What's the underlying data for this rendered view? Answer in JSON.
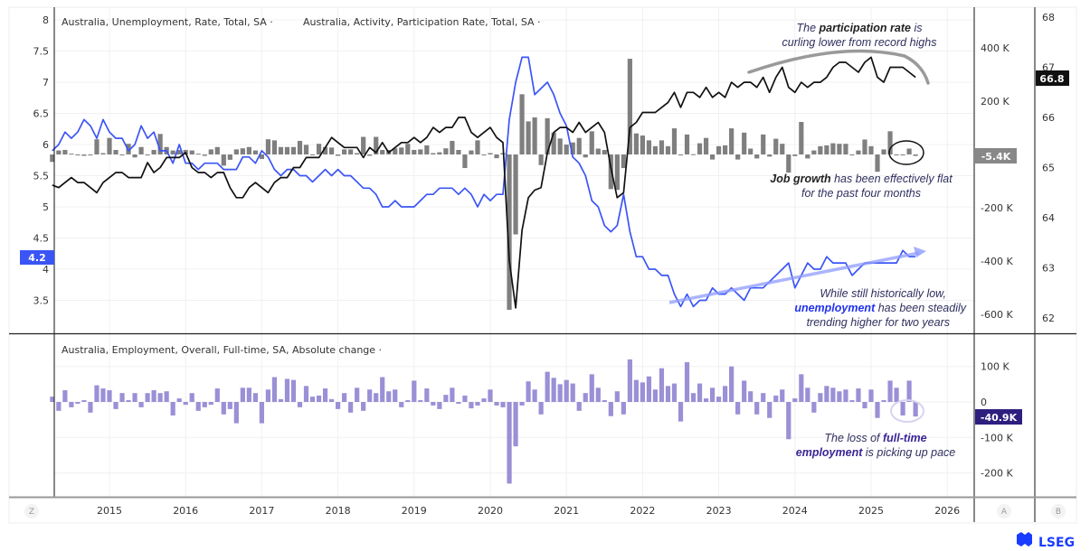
{
  "chart_data": [
    {
      "type": "line+bar",
      "legend": [
        "Australia, Unemployment, Rate, Total, SA ·",
        "Australia, Activity, Participation Rate, Total, SA ·"
      ],
      "x": [
        "2014-04",
        "2014-05",
        "2014-06",
        "2014-07",
        "2014-08",
        "2014-09",
        "2014-10",
        "2014-11",
        "2014-12",
        "2015-01",
        "2015-02",
        "2015-03",
        "2015-04",
        "2015-05",
        "2015-06",
        "2015-07",
        "2015-08",
        "2015-09",
        "2015-10",
        "2015-11",
        "2015-12",
        "2016-01",
        "2016-02",
        "2016-03",
        "2016-04",
        "2016-05",
        "2016-06",
        "2016-07",
        "2016-08",
        "2016-09",
        "2016-10",
        "2016-11",
        "2016-12",
        "2017-01",
        "2017-02",
        "2017-03",
        "2017-04",
        "2017-05",
        "2017-06",
        "2017-07",
        "2017-08",
        "2017-09",
        "2017-10",
        "2017-11",
        "2017-12",
        "2018-01",
        "2018-02",
        "2018-03",
        "2018-04",
        "2018-05",
        "2018-06",
        "2018-07",
        "2018-08",
        "2018-09",
        "2018-10",
        "2018-11",
        "2018-12",
        "2019-01",
        "2019-02",
        "2019-03",
        "2019-04",
        "2019-05",
        "2019-06",
        "2019-07",
        "2019-08",
        "2019-09",
        "2019-10",
        "2019-11",
        "2019-12",
        "2020-01",
        "2020-02",
        "2020-03",
        "2020-04",
        "2020-05",
        "2020-06",
        "2020-07",
        "2020-08",
        "2020-09",
        "2020-10",
        "2020-11",
        "2020-12",
        "2021-01",
        "2021-02",
        "2021-03",
        "2021-04",
        "2021-05",
        "2021-06",
        "2021-07",
        "2021-08",
        "2021-09",
        "2021-10",
        "2021-11",
        "2021-12",
        "2022-01",
        "2022-02",
        "2022-03",
        "2022-04",
        "2022-05",
        "2022-06",
        "2022-07",
        "2022-08",
        "2022-09",
        "2022-10",
        "2022-11",
        "2022-12",
        "2023-01",
        "2023-02",
        "2023-03",
        "2023-04",
        "2023-05",
        "2023-06",
        "2023-07",
        "2023-08",
        "2023-09",
        "2023-10",
        "2023-11",
        "2023-12",
        "2024-01",
        "2024-02",
        "2024-03",
        "2024-04",
        "2024-05",
        "2024-06",
        "2024-07",
        "2024-08",
        "2024-09",
        "2024-10",
        "2024-11",
        "2024-12",
        "2025-01",
        "2025-02",
        "2025-03",
        "2025-04",
        "2025-05",
        "2025-06",
        "2025-07",
        "2025-08"
      ],
      "series": [
        {
          "name": "Australia, Unemployment, Rate, Total, SA",
          "axis": "left",
          "kind": "line",
          "color": "#3b55f5",
          "last_label": "4.2",
          "values": [
            5.9,
            6.0,
            6.2,
            6.1,
            6.2,
            6.4,
            6.3,
            6.1,
            6.4,
            6.2,
            6.1,
            6.1,
            5.9,
            6.0,
            6.3,
            6.1,
            6.2,
            5.9,
            5.9,
            5.7,
            6.0,
            5.7,
            5.7,
            5.6,
            5.7,
            5.7,
            5.7,
            5.6,
            5.6,
            5.6,
            5.8,
            5.8,
            5.7,
            5.9,
            5.8,
            5.6,
            5.5,
            5.6,
            5.6,
            5.5,
            5.5,
            5.4,
            5.5,
            5.6,
            5.5,
            5.6,
            5.5,
            5.5,
            5.4,
            5.3,
            5.3,
            5.2,
            5.0,
            5.0,
            5.1,
            5.0,
            5.0,
            5.0,
            5.1,
            5.2,
            5.2,
            5.3,
            5.3,
            5.3,
            5.2,
            5.3,
            5.2,
            5.0,
            5.2,
            5.1,
            5.2,
            5.2,
            6.4,
            7.0,
            7.4,
            7.4,
            6.8,
            6.9,
            7.0,
            6.8,
            6.5,
            6.3,
            5.8,
            5.7,
            5.5,
            5.1,
            5.0,
            4.7,
            4.6,
            4.7,
            5.2,
            4.6,
            4.2,
            4.2,
            4.0,
            4.0,
            3.9,
            3.9,
            3.6,
            3.4,
            3.6,
            3.4,
            3.5,
            3.5,
            3.7,
            3.6,
            3.6,
            3.7,
            3.6,
            3.5,
            3.7,
            3.7,
            3.7,
            3.8,
            3.9,
            4.0,
            4.1,
            3.7,
            3.9,
            4.1,
            4.0,
            4.0,
            4.2,
            4.1,
            4.1,
            4.1,
            3.9,
            4.0,
            4.1,
            4.1,
            4.1,
            4.1,
            4.1,
            4.1,
            4.3,
            4.2,
            4.2
          ]
        },
        {
          "name": "Australia, Activity, Participation Rate, Total, SA",
          "axis": "right-B",
          "kind": "line",
          "color": "#111111",
          "last_label": "66.8",
          "values": [
            64.65,
            64.6,
            64.7,
            64.8,
            64.7,
            64.7,
            64.6,
            64.5,
            64.7,
            64.8,
            64.9,
            64.9,
            64.8,
            64.8,
            64.8,
            65.1,
            64.9,
            65.0,
            65.2,
            65.2,
            65.2,
            65.3,
            65.0,
            64.9,
            64.9,
            64.8,
            64.9,
            64.9,
            64.6,
            64.4,
            64.4,
            64.6,
            64.7,
            64.6,
            64.5,
            64.7,
            64.8,
            64.8,
            65.0,
            65.0,
            65.2,
            65.2,
            65.2,
            65.4,
            65.6,
            65.5,
            65.4,
            65.4,
            65.4,
            65.2,
            65.4,
            65.3,
            65.5,
            65.3,
            65.4,
            65.5,
            65.5,
            65.6,
            65.5,
            65.6,
            65.8,
            65.7,
            65.8,
            65.8,
            66.0,
            66.0,
            65.7,
            65.6,
            65.7,
            65.8,
            65.6,
            65.5,
            63.15,
            62.2,
            63.75,
            64.4,
            64.55,
            64.6,
            65.3,
            65.7,
            65.8,
            65.8,
            65.7,
            65.9,
            65.7,
            65.8,
            65.9,
            65.7,
            65.0,
            64.4,
            64.5,
            65.8,
            65.9,
            66.1,
            66.1,
            66.1,
            66.2,
            66.3,
            66.5,
            66.2,
            66.5,
            66.5,
            66.4,
            66.6,
            66.4,
            66.5,
            66.4,
            66.7,
            66.6,
            66.7,
            66.7,
            66.6,
            66.8,
            66.5,
            66.8,
            67.0,
            66.6,
            66.5,
            66.7,
            66.6,
            66.7,
            66.7,
            66.8,
            67.0,
            67.1,
            67.1,
            67.0,
            66.9,
            67.1,
            67.2,
            66.8,
            66.7,
            67.0,
            67.0,
            67.0,
            66.9,
            66.8
          ]
        },
        {
          "axis": "right-A",
          "kind": "bar",
          "color": "#7f7f7f",
          "unit": "K",
          "last_label": "-5.4K",
          "values": [
            -28,
            15,
            17,
            3,
            -2,
            -5,
            0,
            57,
            5,
            62,
            17,
            -2,
            40,
            -11,
            28,
            0,
            17,
            77,
            28,
            15,
            17,
            17,
            15,
            3,
            -5,
            19,
            28,
            -42,
            -20,
            19,
            23,
            28,
            15,
            -17,
            57,
            53,
            28,
            28,
            28,
            51,
            36,
            -2,
            40,
            28,
            26,
            -5,
            19,
            19,
            5,
            66,
            -5,
            66,
            17,
            17,
            23,
            26,
            40,
            17,
            19,
            34,
            5,
            8,
            23,
            51,
            17,
            -51,
            15,
            53,
            -2,
            5,
            -14,
            5,
            -583,
            -300,
            226,
            124,
            139,
            -40,
            136,
            82,
            60,
            37,
            45,
            62,
            -11,
            87,
            22,
            17,
            -130,
            -133,
            -51,
            359,
            79,
            71,
            53,
            31,
            53,
            31,
            98,
            0,
            75,
            1,
            42,
            62,
            -19,
            31,
            34,
            98,
            -19,
            82,
            22,
            -15,
            75,
            -8,
            59,
            40,
            -68,
            -6,
            122,
            -15,
            15,
            31,
            34,
            42,
            40,
            40,
            -3,
            15,
            56,
            31,
            -65,
            19,
            87,
            0,
            0,
            22,
            -5.4
          ]
        }
      ],
      "axes": {
        "left": {
          "ticks": [
            "8",
            "7.5",
            "7",
            "6.5",
            "6",
            "5.5",
            "5",
            "4.5",
            "4",
            "3.5"
          ],
          "range": [
            3.1,
            8.2
          ]
        },
        "right_A": {
          "ticks": [
            "400 K",
            "200 K",
            "-200 K",
            "-400 K",
            "-600 K"
          ],
          "range": [
            -660,
            520
          ]
        },
        "right_B": {
          "ticks": [
            "68",
            "67",
            "66",
            "65",
            "64",
            "63",
            "62"
          ],
          "range": [
            61.7,
            68.2
          ]
        },
        "x_ticks": [
          "2015",
          "2016",
          "2017",
          "2018",
          "2019",
          "2020",
          "2021",
          "2022",
          "2023",
          "2024",
          "2025",
          "2026"
        ]
      },
      "grid": true
    },
    {
      "type": "bar",
      "legend": [
        "Australia, Employment, Overall, Full-time, SA, Absolute change ·"
      ],
      "series": [
        {
          "name": "Australia, Employment, Overall, Full-time, SA, Absolute change",
          "color": "#9a90d6",
          "unit": "K",
          "last_label": "-40.9K",
          "values": [
            15,
            -25,
            33,
            -15,
            -5,
            5,
            -30,
            47,
            38,
            33,
            -20,
            25,
            5,
            25,
            -15,
            25,
            33,
            25,
            30,
            -38,
            10,
            -8,
            25,
            -25,
            -15,
            -8,
            38,
            -35,
            -20,
            -60,
            40,
            40,
            25,
            -60,
            35,
            70,
            8,
            65,
            62,
            -15,
            45,
            15,
            18,
            38,
            8,
            -20,
            25,
            -30,
            40,
            -25,
            35,
            25,
            70,
            30,
            35,
            -15,
            5,
            60,
            5,
            38,
            -10,
            -20,
            20,
            40,
            -5,
            18,
            -18,
            -10,
            10,
            35,
            -10,
            -15,
            -230,
            -125,
            -10,
            58,
            35,
            -35,
            85,
            68,
            50,
            62,
            52,
            -25,
            25,
            78,
            40,
            5,
            -40,
            30,
            -35,
            120,
            62,
            55,
            72,
            35,
            95,
            45,
            52,
            -55,
            112,
            25,
            52,
            10,
            40,
            15,
            45,
            100,
            -35,
            60,
            30,
            -35,
            25,
            -45,
            18,
            35,
            -105,
            10,
            78,
            40,
            -30,
            25,
            45,
            40,
            30,
            35,
            5,
            38,
            -18,
            35,
            -45,
            5,
            60,
            40,
            -38,
            60,
            -40.9
          ]
        }
      ],
      "axes": {
        "right_A": {
          "ticks": [
            "100 K",
            "0",
            "-100 K",
            "-200 K"
          ],
          "range": [
            -270,
            165
          ]
        }
      },
      "grid": true
    }
  ],
  "annotations": {
    "participation": {
      "l1a": "The ",
      "l1b": "participation rate",
      "l1c": " is",
      "l2": "curling lower from record highs"
    },
    "jobs": {
      "l1a": "Job growth",
      "l1b": " has been effectively flat",
      "l2": "for the past four months"
    },
    "unemployment": {
      "l1": "While still historically low,",
      "l2a": "unemployment",
      "l2b": " has been steadily",
      "l3": "trending higher for two years"
    },
    "fulltime": {
      "l1a": "The loss of ",
      "l1b": "full-time",
      "l2a": "employment",
      "l2b": " is picking up pace"
    }
  },
  "controls": {
    "left_scale": "Z",
    "scale_a": "A",
    "scale_b": "B"
  },
  "brand": {
    "logo": "LSEG",
    "color": "#1a3cff"
  }
}
